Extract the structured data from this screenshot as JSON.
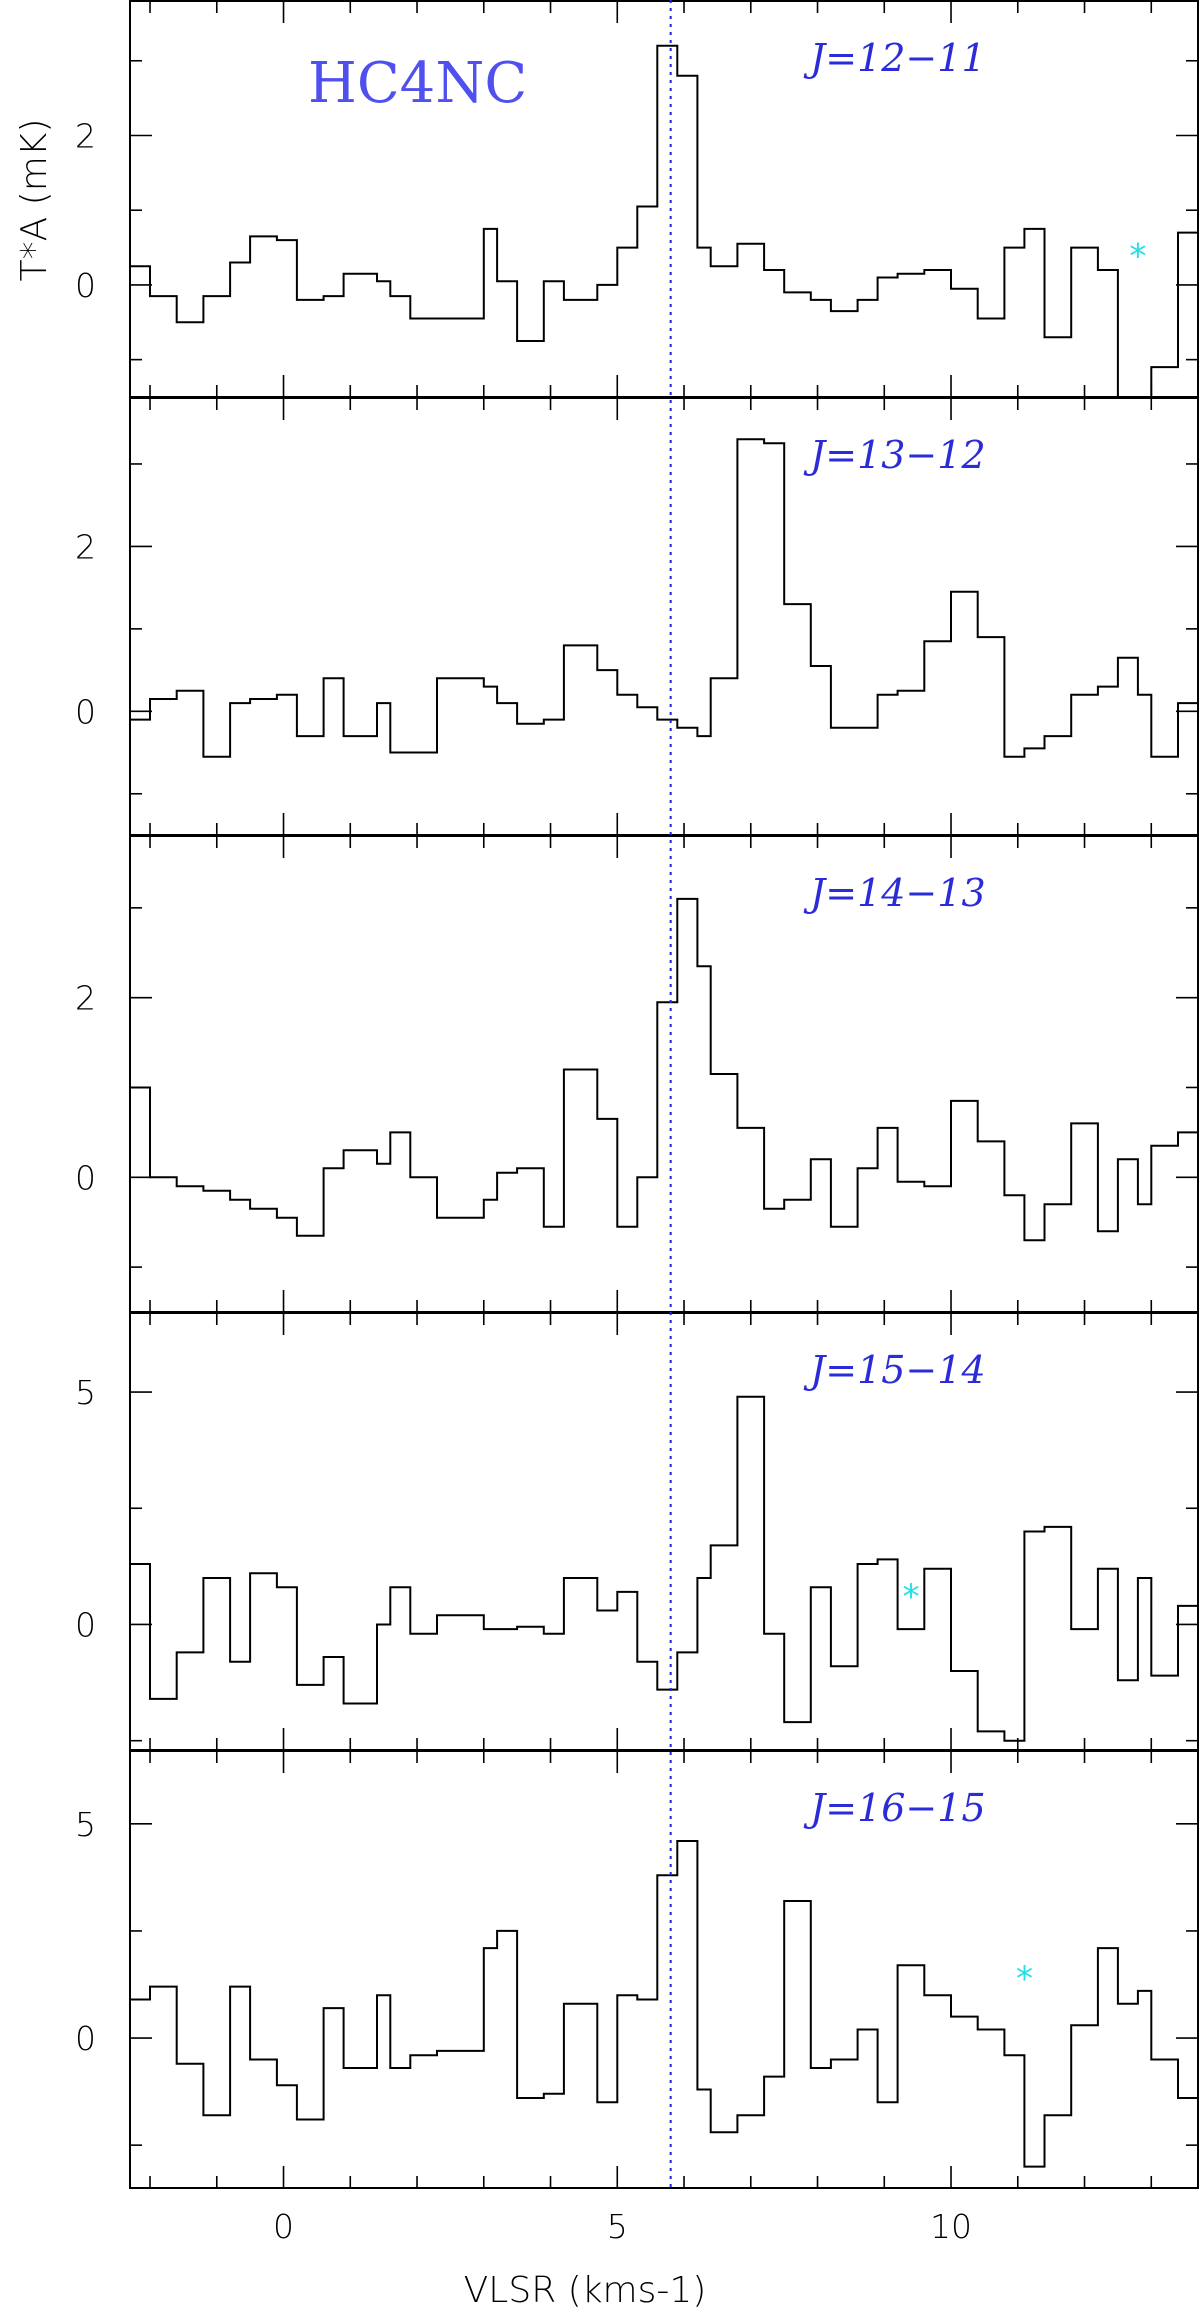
{
  "chart_data": {
    "type": "line",
    "drawstyle": "steps",
    "title": "HC4NC",
    "xlabel": "VLSR (kms-1)",
    "ylabel": "T*A (mK)",
    "xlim": [
      -2.3,
      13.7
    ],
    "xticks": [
      0,
      5,
      10
    ],
    "vlsr_marker": 5.8,
    "panels": [
      {
        "label": "J=12−11",
        "ylim": [
          -1.5,
          3.8
        ],
        "yticks": [
          0,
          2
        ],
        "star": [
          12.8,
          0.45
        ],
        "x": [
          -2.3,
          -2.0,
          -1.6,
          -1.2,
          -0.8,
          -0.5,
          -0.1,
          0.2,
          0.6,
          0.9,
          1.4,
          1.6,
          1.9,
          2.3,
          3.0,
          3.2,
          3.5,
          3.9,
          4.2,
          4.7,
          5.0,
          5.3,
          5.6,
          5.9,
          6.2,
          6.4,
          6.8,
          7.2,
          7.5,
          7.9,
          8.2,
          8.6,
          8.9,
          9.2,
          9.6,
          10.0,
          10.4,
          10.8,
          11.1,
          11.4,
          11.8,
          12.2,
          12.5,
          12.8,
          13.0,
          13.4
        ],
        "y": [
          0.25,
          -0.15,
          -0.5,
          -0.15,
          0.3,
          0.65,
          0.6,
          -0.2,
          -0.15,
          0.15,
          0.05,
          -0.15,
          -0.45,
          -0.45,
          0.75,
          0.05,
          -0.75,
          0.05,
          -0.2,
          0.0,
          0.5,
          1.05,
          3.2,
          2.8,
          0.5,
          0.25,
          0.55,
          0.2,
          -0.1,
          -0.2,
          -0.35,
          -0.2,
          0.1,
          0.15,
          0.2,
          -0.05,
          -0.45,
          0.5,
          0.75,
          -0.7,
          0.5,
          0.2,
          -1.5,
          -1.5,
          -1.1,
          0.7
        ]
      },
      {
        "label": "J=13−12",
        "ylim": [
          -1.5,
          3.8
        ],
        "yticks": [
          0,
          2
        ],
        "x": [
          -2.3,
          -2.0,
          -1.6,
          -1.2,
          -0.8,
          -0.5,
          -0.1,
          0.2,
          0.6,
          0.9,
          1.4,
          1.6,
          1.9,
          2.3,
          3.0,
          3.2,
          3.5,
          3.9,
          4.2,
          4.7,
          5.0,
          5.3,
          5.6,
          5.9,
          6.2,
          6.4,
          6.8,
          7.2,
          7.5,
          7.9,
          8.2,
          8.6,
          8.9,
          9.2,
          9.6,
          10.0,
          10.4,
          10.8,
          11.1,
          11.4,
          11.8,
          12.2,
          12.5,
          12.8,
          13.0,
          13.4
        ],
        "y": [
          -0.1,
          0.15,
          0.25,
          -0.55,
          0.1,
          0.15,
          0.2,
          -0.3,
          0.4,
          -0.3,
          0.1,
          -0.5,
          -0.5,
          0.4,
          0.3,
          0.1,
          -0.15,
          -0.1,
          0.8,
          0.5,
          0.2,
          0.05,
          -0.1,
          -0.2,
          -0.3,
          0.4,
          3.3,
          3.25,
          1.3,
          0.55,
          -0.2,
          -0.2,
          0.2,
          0.25,
          0.85,
          1.45,
          0.9,
          -0.55,
          -0.45,
          -0.3,
          0.2,
          0.3,
          0.65,
          0.2,
          -0.55,
          0.1
        ]
      },
      {
        "label": "J=14−13",
        "ylim": [
          -1.5,
          3.8
        ],
        "yticks": [
          0,
          2
        ],
        "x": [
          -2.3,
          -2.0,
          -1.6,
          -1.2,
          -0.8,
          -0.5,
          -0.1,
          0.2,
          0.6,
          0.9,
          1.4,
          1.6,
          1.9,
          2.3,
          3.0,
          3.2,
          3.5,
          3.9,
          4.2,
          4.7,
          5.0,
          5.3,
          5.6,
          5.9,
          6.2,
          6.4,
          6.8,
          7.2,
          7.5,
          7.9,
          8.2,
          8.6,
          8.9,
          9.2,
          9.6,
          10.0,
          10.4,
          10.8,
          11.1,
          11.4,
          11.8,
          12.2,
          12.5,
          12.8,
          13.0,
          13.4
        ],
        "y": [
          1.0,
          0.0,
          -0.1,
          -0.15,
          -0.25,
          -0.35,
          -0.45,
          -0.65,
          0.1,
          0.3,
          0.15,
          0.5,
          0.0,
          -0.45,
          -0.25,
          0.05,
          0.1,
          -0.55,
          1.2,
          0.65,
          -0.55,
          0.0,
          1.95,
          3.1,
          2.35,
          1.15,
          0.55,
          -0.35,
          -0.25,
          0.2,
          -0.55,
          0.1,
          0.55,
          -0.05,
          -0.1,
          0.85,
          0.4,
          -0.2,
          -0.7,
          -0.3,
          0.6,
          -0.6,
          0.2,
          -0.3,
          0.35,
          0.5
        ]
      },
      {
        "label": "J=15−14",
        "ylim": [
          -2.7,
          6.7
        ],
        "yticks": [
          0,
          5
        ],
        "star": [
          9.4,
          0.7
        ],
        "x": [
          -2.3,
          -2.0,
          -1.6,
          -1.2,
          -0.8,
          -0.5,
          -0.1,
          0.2,
          0.6,
          0.9,
          1.4,
          1.6,
          1.9,
          2.3,
          3.0,
          3.2,
          3.5,
          3.9,
          4.2,
          4.7,
          5.0,
          5.3,
          5.6,
          5.9,
          6.2,
          6.4,
          6.8,
          7.2,
          7.5,
          7.9,
          8.2,
          8.6,
          8.9,
          9.2,
          9.6,
          10.0,
          10.4,
          10.8,
          11.1,
          11.4,
          11.8,
          12.2,
          12.5,
          12.8,
          13.0,
          13.4
        ],
        "y": [
          1.3,
          -1.6,
          -0.6,
          1.0,
          -0.8,
          1.1,
          0.8,
          -1.3,
          -0.7,
          -1.7,
          0.0,
          0.8,
          -0.2,
          0.2,
          -0.1,
          -0.1,
          -0.05,
          -0.2,
          1.0,
          0.3,
          0.7,
          -0.8,
          -1.4,
          -0.6,
          1.0,
          1.7,
          4.9,
          -0.2,
          -2.1,
          0.8,
          -0.9,
          1.3,
          1.4,
          -0.1,
          1.2,
          -1.0,
          -2.3,
          -2.5,
          2.0,
          2.1,
          -0.1,
          1.2,
          -1.2,
          1.0,
          -1.1,
          0.4
        ]
      },
      {
        "label": "J=16−15",
        "ylim": [
          -3.5,
          6.7
        ],
        "yticks": [
          0,
          5
        ],
        "star": [
          11.1,
          1.5
        ],
        "x": [
          -2.3,
          -2.0,
          -1.6,
          -1.2,
          -0.8,
          -0.5,
          -0.1,
          0.2,
          0.6,
          0.9,
          1.4,
          1.6,
          1.9,
          2.3,
          3.0,
          3.2,
          3.5,
          3.9,
          4.2,
          4.7,
          5.0,
          5.3,
          5.6,
          5.9,
          6.2,
          6.4,
          6.8,
          7.2,
          7.5,
          7.9,
          8.2,
          8.6,
          8.9,
          9.2,
          9.6,
          10.0,
          10.4,
          10.8,
          11.1,
          11.4,
          11.8,
          12.2,
          12.5,
          12.8,
          13.0,
          13.4
        ],
        "y": [
          0.9,
          1.2,
          -0.6,
          -1.8,
          1.2,
          -0.5,
          -1.1,
          -1.9,
          0.7,
          -0.7,
          1.0,
          -0.7,
          -0.4,
          -0.3,
          2.1,
          2.5,
          -1.4,
          -1.3,
          0.8,
          -1.5,
          1.0,
          0.9,
          3.8,
          4.6,
          -1.2,
          -2.2,
          -1.8,
          -0.9,
          3.2,
          -0.7,
          -0.5,
          0.2,
          -1.5,
          1.7,
          1.0,
          0.5,
          0.2,
          -0.4,
          -3.0,
          -1.8,
          0.3,
          2.1,
          0.8,
          1.1,
          -0.5,
          -1.4
        ]
      }
    ]
  }
}
